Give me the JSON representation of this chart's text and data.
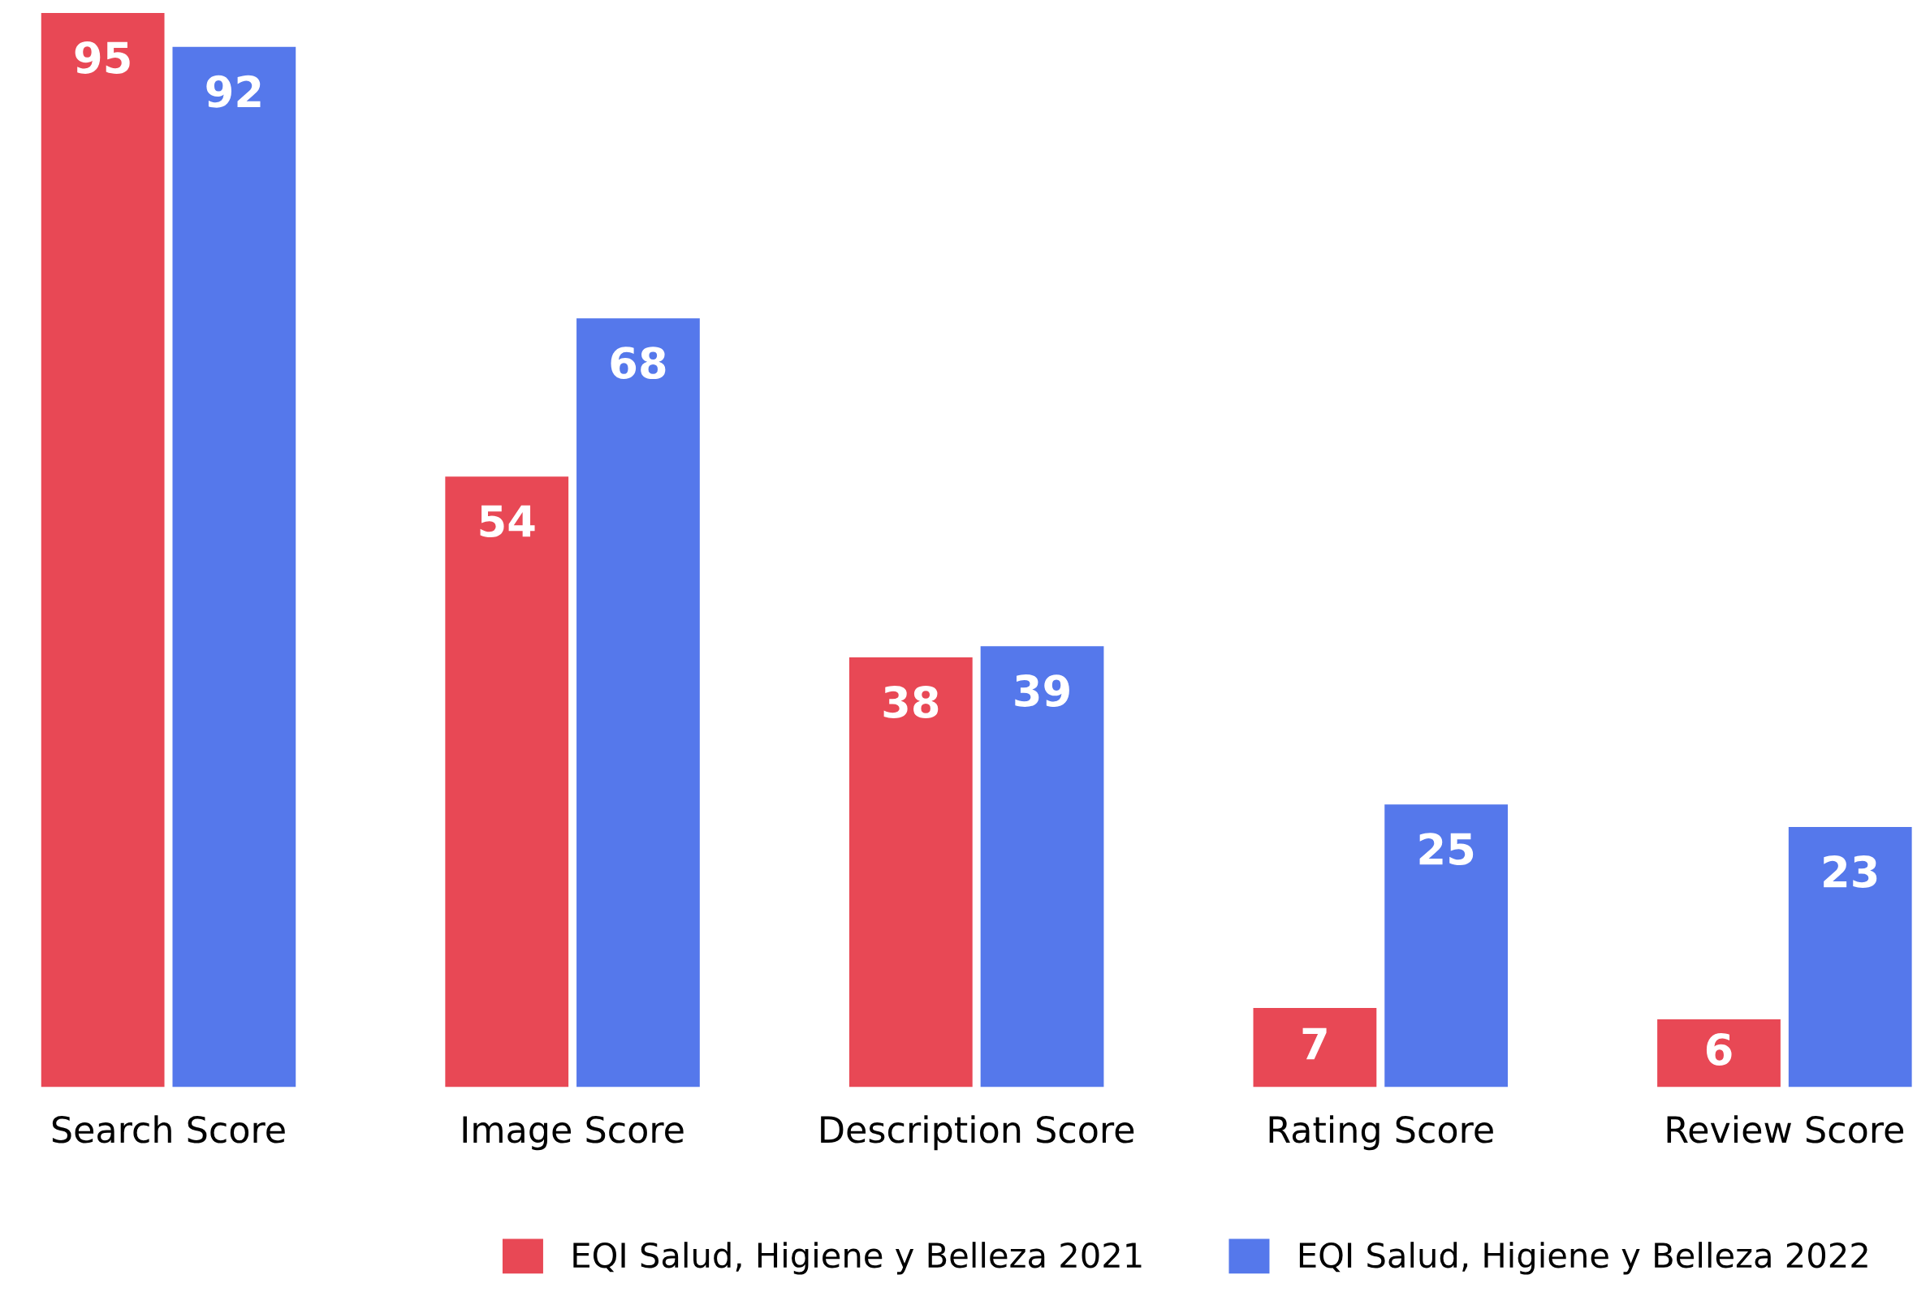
{
  "chart_data": {
    "type": "bar",
    "categories": [
      "Search Score",
      "Image Score",
      "Description Score",
      "Rating Score",
      "Review Score"
    ],
    "series": [
      {
        "name": "EQI Salud, Higiene y Belleza 2021",
        "color": "#e84855",
        "values": [
          95,
          54,
          38,
          7,
          6
        ]
      },
      {
        "name": "EQI Salud, Higiene y Belleza 2022",
        "color": "#5578eb",
        "values": [
          92,
          68,
          39,
          25,
          23
        ]
      }
    ],
    "ylim": [
      0,
      95
    ],
    "tick_labels": "x",
    "data_labels": true,
    "grid": false,
    "legend": "bottom"
  }
}
